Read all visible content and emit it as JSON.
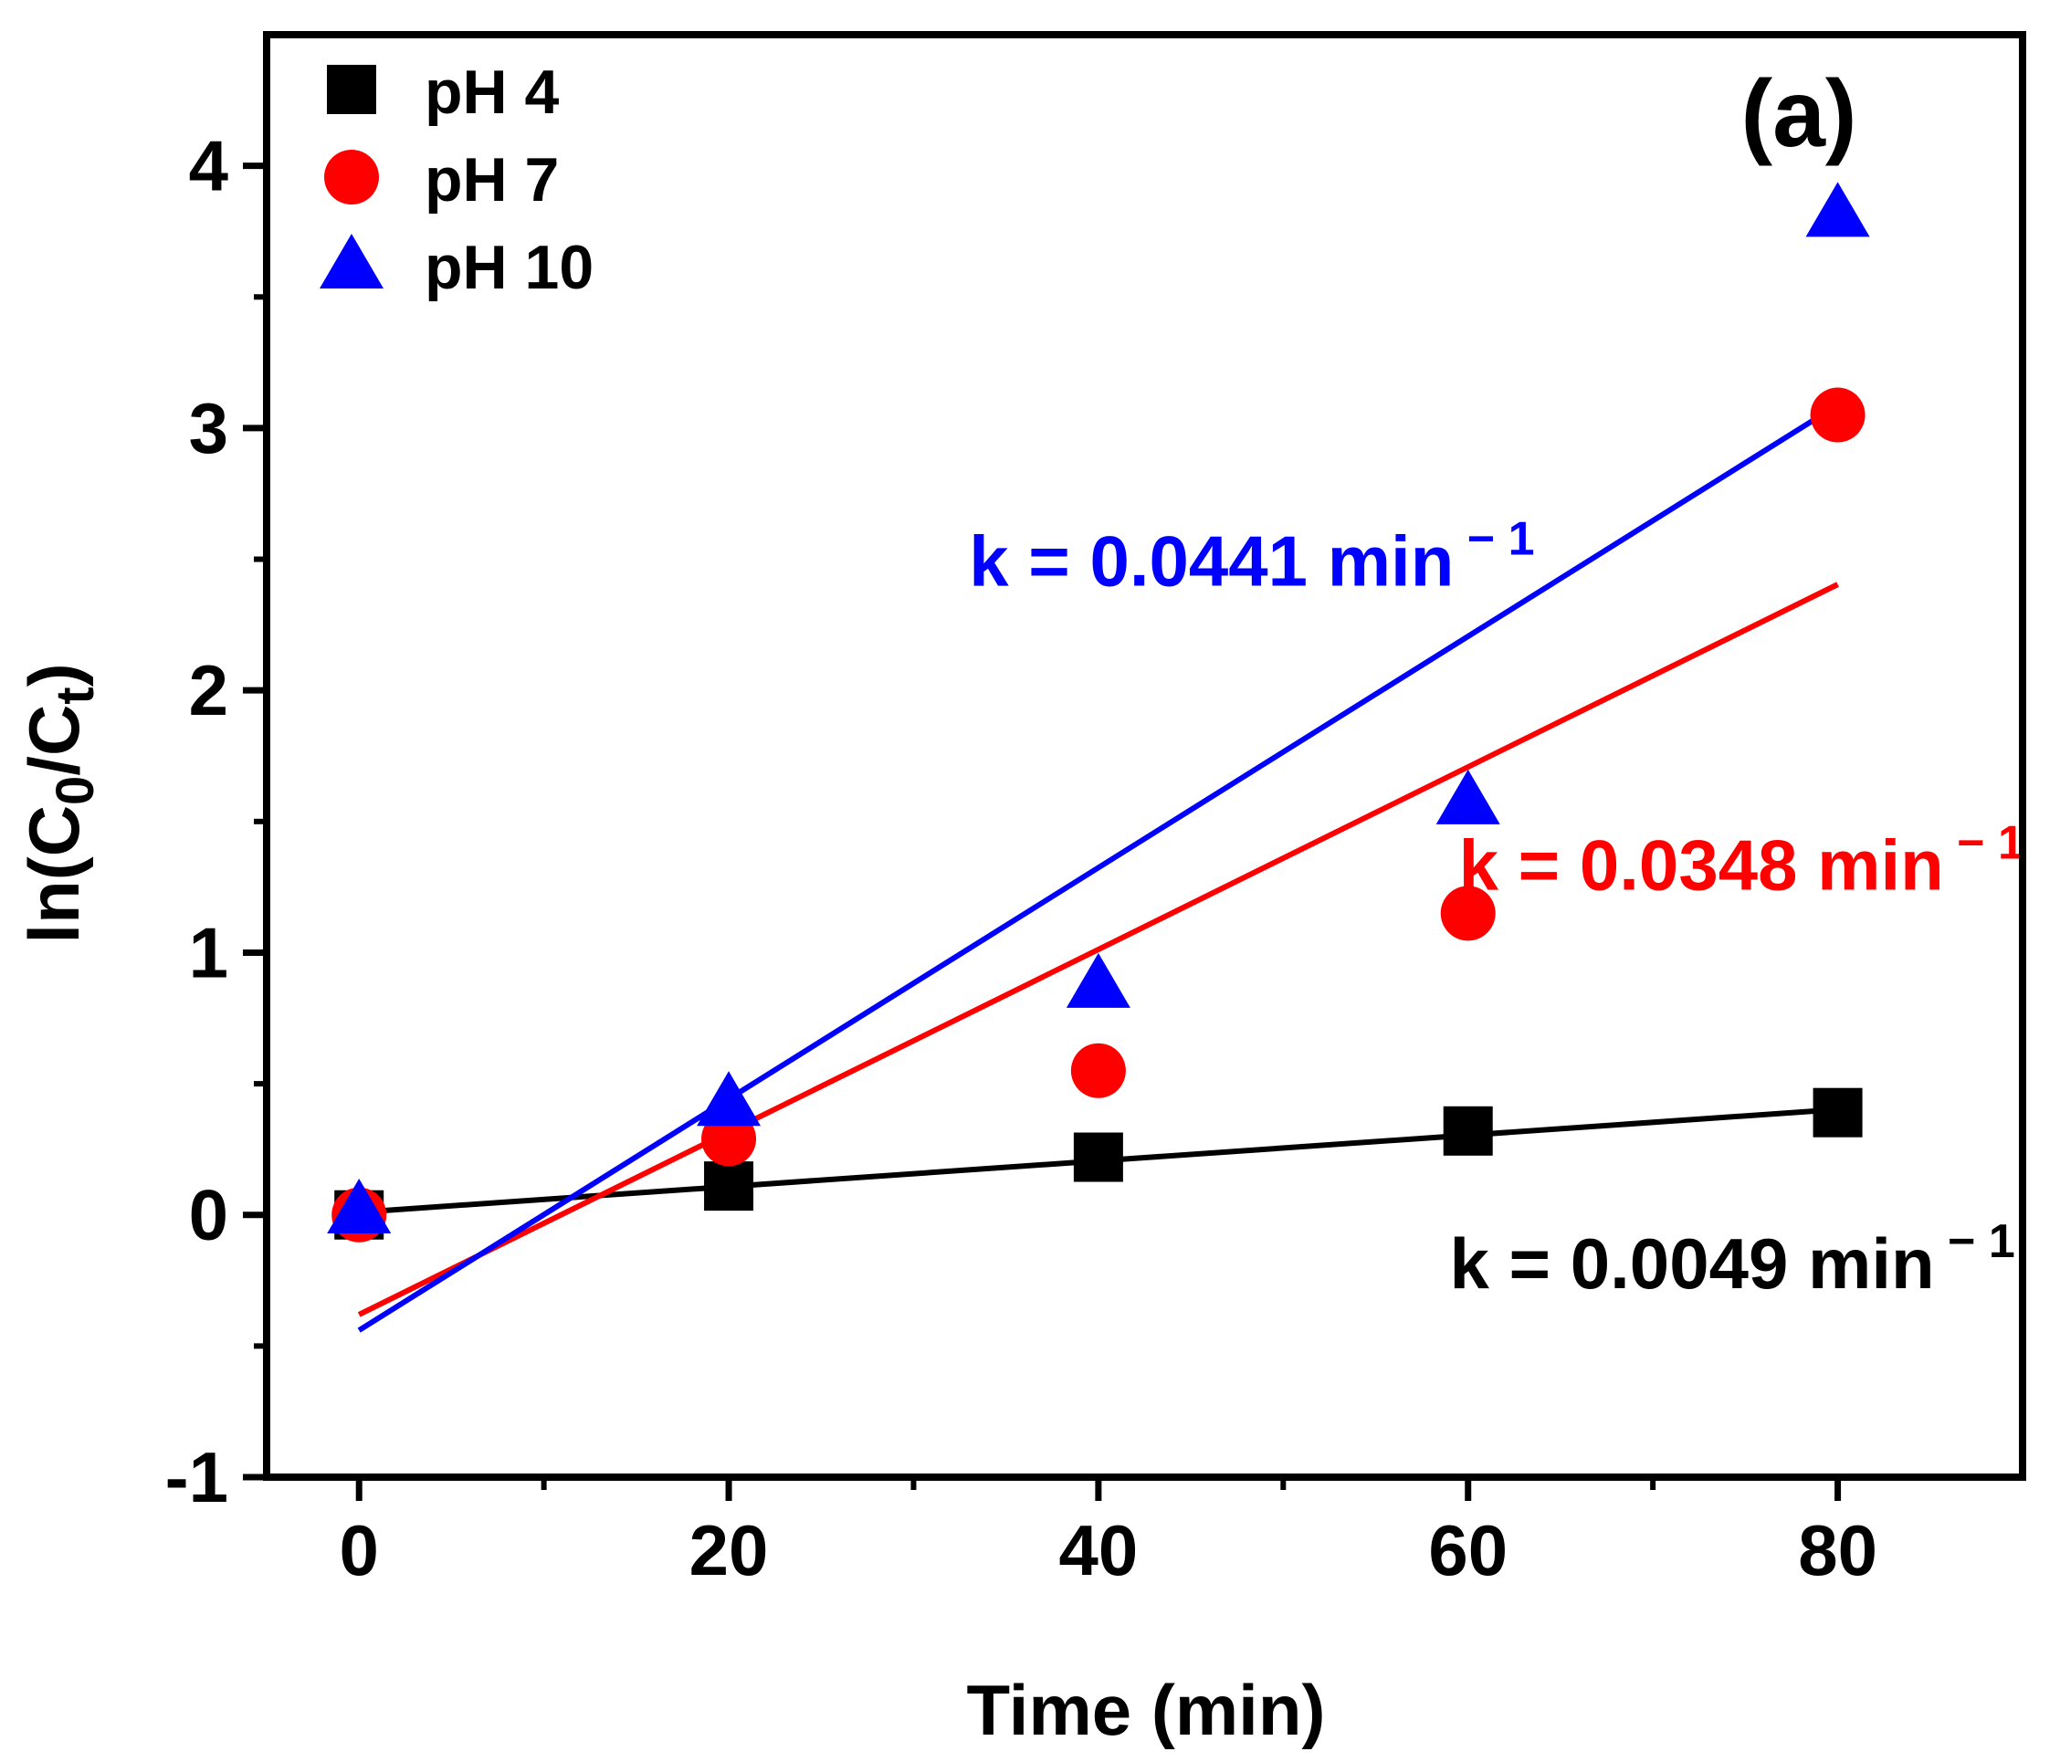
{
  "chart_data": {
    "type": "scatter",
    "panel_label": "(a)",
    "xlabel": "Time (min)",
    "ylabel": {
      "base": "ln(C",
      "sub1": "0",
      "mid": "/C",
      "sub2": "t",
      "end": ")"
    },
    "xlim": [
      -5,
      90
    ],
    "ylim": [
      -1,
      4.5
    ],
    "xticks": [
      0,
      20,
      40,
      60,
      80
    ],
    "yticks": [
      -1,
      0,
      1,
      2,
      3,
      4
    ],
    "grid": false,
    "legend_position": "top-left",
    "series": [
      {
        "name": "pH 4",
        "marker": "square",
        "color": "#000000",
        "x": [
          0,
          20,
          40,
          60,
          80
        ],
        "y": [
          0.0,
          0.11,
          0.22,
          0.32,
          0.39
        ],
        "fit": {
          "k": 0.0049,
          "intercept": 0.01
        },
        "annotation": {
          "prefix": "k = 0.0049 min",
          "sup": "− 1",
          "anchor_x": 59,
          "anchor_y": -0.28
        }
      },
      {
        "name": "pH 7",
        "marker": "circle",
        "color": "#ff0000",
        "x": [
          0,
          20,
          40,
          60,
          80
        ],
        "y": [
          0.0,
          0.29,
          0.55,
          1.15,
          3.05
        ],
        "fit": {
          "k": 0.0348,
          "intercept": -0.38
        },
        "annotation": {
          "prefix": "k = 0.0348 min",
          "sup": "− 1",
          "anchor_x": 59.5,
          "anchor_y": 1.24
        }
      },
      {
        "name": "pH 10",
        "marker": "triangle",
        "color": "#0000ff",
        "x": [
          0,
          20,
          40,
          60,
          80
        ],
        "y": [
          0.02,
          0.43,
          0.88,
          1.58,
          3.82
        ],
        "fit": {
          "k": 0.0441,
          "intercept": -0.44
        },
        "annotation": {
          "prefix": "k = 0.0441 min",
          "sup": "− 1",
          "anchor_x": 33,
          "anchor_y": 2.4
        }
      }
    ]
  }
}
